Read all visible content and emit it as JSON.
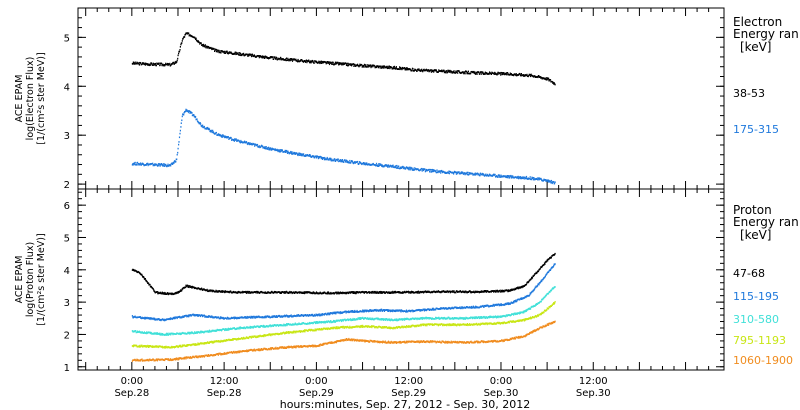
{
  "chart_data": [
    {
      "type": "scatter",
      "panel": "electron",
      "ylabel_lines": [
        "ACE EPAM",
        "log(Electron Flux)",
        "[1/(cm²s ster MeV)]"
      ],
      "ylim": [
        1.9,
        5.6
      ],
      "yticks": [
        2,
        3,
        4,
        5
      ],
      "legend_title_lines": [
        "Electron",
        "Energy ran"
      ],
      "legend_unit": "[keV]",
      "series": [
        {
          "name": "38-53",
          "color": "#000000",
          "points": [
            [
              0,
              4.47
            ],
            [
              5,
              4.45
            ],
            [
              10,
              4.44
            ],
            [
              11.5,
              4.5
            ],
            [
              13,
              4.95
            ],
            [
              14,
              5.08
            ],
            [
              16,
              5.02
            ],
            [
              18,
              4.85
            ],
            [
              22,
              4.72
            ],
            [
              28,
              4.66
            ],
            [
              36,
              4.58
            ],
            [
              44,
              4.52
            ],
            [
              52,
              4.47
            ],
            [
              60,
              4.42
            ],
            [
              68,
              4.38
            ],
            [
              74,
              4.33
            ],
            [
              82,
              4.3
            ],
            [
              90,
              4.27
            ],
            [
              98,
              4.25
            ],
            [
              104,
              4.22
            ],
            [
              108,
              4.15
            ],
            [
              110,
              4.05
            ]
          ]
        },
        {
          "name": "175-315",
          "color": "#1e78dc",
          "points": [
            [
              0,
              2.42
            ],
            [
              5,
              2.4
            ],
            [
              10,
              2.38
            ],
            [
              11.5,
              2.5
            ],
            [
              13,
              3.4
            ],
            [
              14,
              3.52
            ],
            [
              16,
              3.4
            ],
            [
              18,
              3.2
            ],
            [
              22,
              3.02
            ],
            [
              28,
              2.87
            ],
            [
              36,
              2.72
            ],
            [
              44,
              2.6
            ],
            [
              52,
              2.5
            ],
            [
              60,
              2.42
            ],
            [
              68,
              2.36
            ],
            [
              74,
              2.3
            ],
            [
              82,
              2.24
            ],
            [
              90,
              2.2
            ],
            [
              98,
              2.15
            ],
            [
              104,
              2.12
            ],
            [
              108,
              2.07
            ],
            [
              110,
              2.02
            ]
          ]
        }
      ]
    },
    {
      "type": "scatter",
      "panel": "proton",
      "ylabel_lines": [
        "ACE EPAM",
        "log(Proton Flux)",
        "[1/(cm²s ster MeV)]"
      ],
      "ylim": [
        0.9,
        6.5
      ],
      "yticks": [
        1,
        2,
        3,
        4,
        5,
        6
      ],
      "legend_title_lines": [
        "Proton",
        "Energy ran"
      ],
      "legend_unit": "[keV]",
      "series": [
        {
          "name": "47-68",
          "color": "#000000",
          "points": [
            [
              0,
              4.0
            ],
            [
              2,
              3.9
            ],
            [
              4,
              3.6
            ],
            [
              6,
              3.3
            ],
            [
              10,
              3.25
            ],
            [
              12,
              3.3
            ],
            [
              14,
              3.5
            ],
            [
              16,
              3.45
            ],
            [
              20,
              3.35
            ],
            [
              28,
              3.3
            ],
            [
              40,
              3.3
            ],
            [
              52,
              3.28
            ],
            [
              60,
              3.3
            ],
            [
              70,
              3.3
            ],
            [
              80,
              3.32
            ],
            [
              90,
              3.32
            ],
            [
              98,
              3.35
            ],
            [
              102,
              3.5
            ],
            [
              105,
              3.9
            ],
            [
              108,
              4.3
            ],
            [
              110,
              4.5
            ]
          ]
        },
        {
          "name": "115-195",
          "color": "#1e78dc",
          "points": [
            [
              0,
              2.55
            ],
            [
              8,
              2.45
            ],
            [
              16,
              2.6
            ],
            [
              24,
              2.5
            ],
            [
              36,
              2.55
            ],
            [
              48,
              2.6
            ],
            [
              56,
              2.7
            ],
            [
              64,
              2.75
            ],
            [
              72,
              2.72
            ],
            [
              80,
              2.8
            ],
            [
              90,
              2.85
            ],
            [
              98,
              2.95
            ],
            [
              103,
              3.2
            ],
            [
              106,
              3.6
            ],
            [
              110,
              4.2
            ]
          ]
        },
        {
          "name": "310-580",
          "color": "#40e0d8",
          "points": [
            [
              0,
              2.1
            ],
            [
              8,
              2.0
            ],
            [
              16,
              2.05
            ],
            [
              28,
              2.2
            ],
            [
              40,
              2.3
            ],
            [
              52,
              2.4
            ],
            [
              60,
              2.5
            ],
            [
              68,
              2.45
            ],
            [
              76,
              2.5
            ],
            [
              86,
              2.5
            ],
            [
              96,
              2.55
            ],
            [
              102,
              2.7
            ],
            [
              106,
              3.0
            ],
            [
              110,
              3.5
            ]
          ]
        },
        {
          "name": "795-1193",
          "color": "#c8e614",
          "points": [
            [
              0,
              1.65
            ],
            [
              10,
              1.6
            ],
            [
              20,
              1.75
            ],
            [
              30,
              1.9
            ],
            [
              40,
              2.05
            ],
            [
              52,
              2.2
            ],
            [
              60,
              2.25
            ],
            [
              68,
              2.2
            ],
            [
              76,
              2.3
            ],
            [
              86,
              2.3
            ],
            [
              96,
              2.35
            ],
            [
              102,
              2.45
            ],
            [
              106,
              2.6
            ],
            [
              110,
              3.0
            ]
          ]
        },
        {
          "name": "1060-1900",
          "color": "#f08c1e",
          "points": [
            [
              0,
              1.2
            ],
            [
              10,
              1.22
            ],
            [
              20,
              1.35
            ],
            [
              30,
              1.5
            ],
            [
              40,
              1.6
            ],
            [
              48,
              1.65
            ],
            [
              52,
              1.75
            ],
            [
              56,
              1.85
            ],
            [
              60,
              1.8
            ],
            [
              68,
              1.75
            ],
            [
              76,
              1.78
            ],
            [
              86,
              1.75
            ],
            [
              96,
              1.8
            ],
            [
              102,
              1.95
            ],
            [
              106,
              2.2
            ],
            [
              110,
              2.4
            ]
          ]
        }
      ]
    }
  ],
  "x_axis": {
    "xlim": [
      -14,
      154
    ],
    "ticks": [
      {
        "x": 0,
        "time": "0:00",
        "date": "Sep.28"
      },
      {
        "x": 24,
        "time": "12:00",
        "date": "Sep.28"
      },
      {
        "x": 48,
        "time": "0:00",
        "date": "Sep.29"
      },
      {
        "x": 72,
        "time": "12:00",
        "date": "Sep.29"
      },
      {
        "x": 96,
        "time": "0:00",
        "date": "Sep.30"
      },
      {
        "x": 120,
        "time": "12:00",
        "date": "Sep.30"
      }
    ],
    "xlabel": "hours:minutes, Sep. 27, 2012 - Sep. 30, 2012"
  }
}
